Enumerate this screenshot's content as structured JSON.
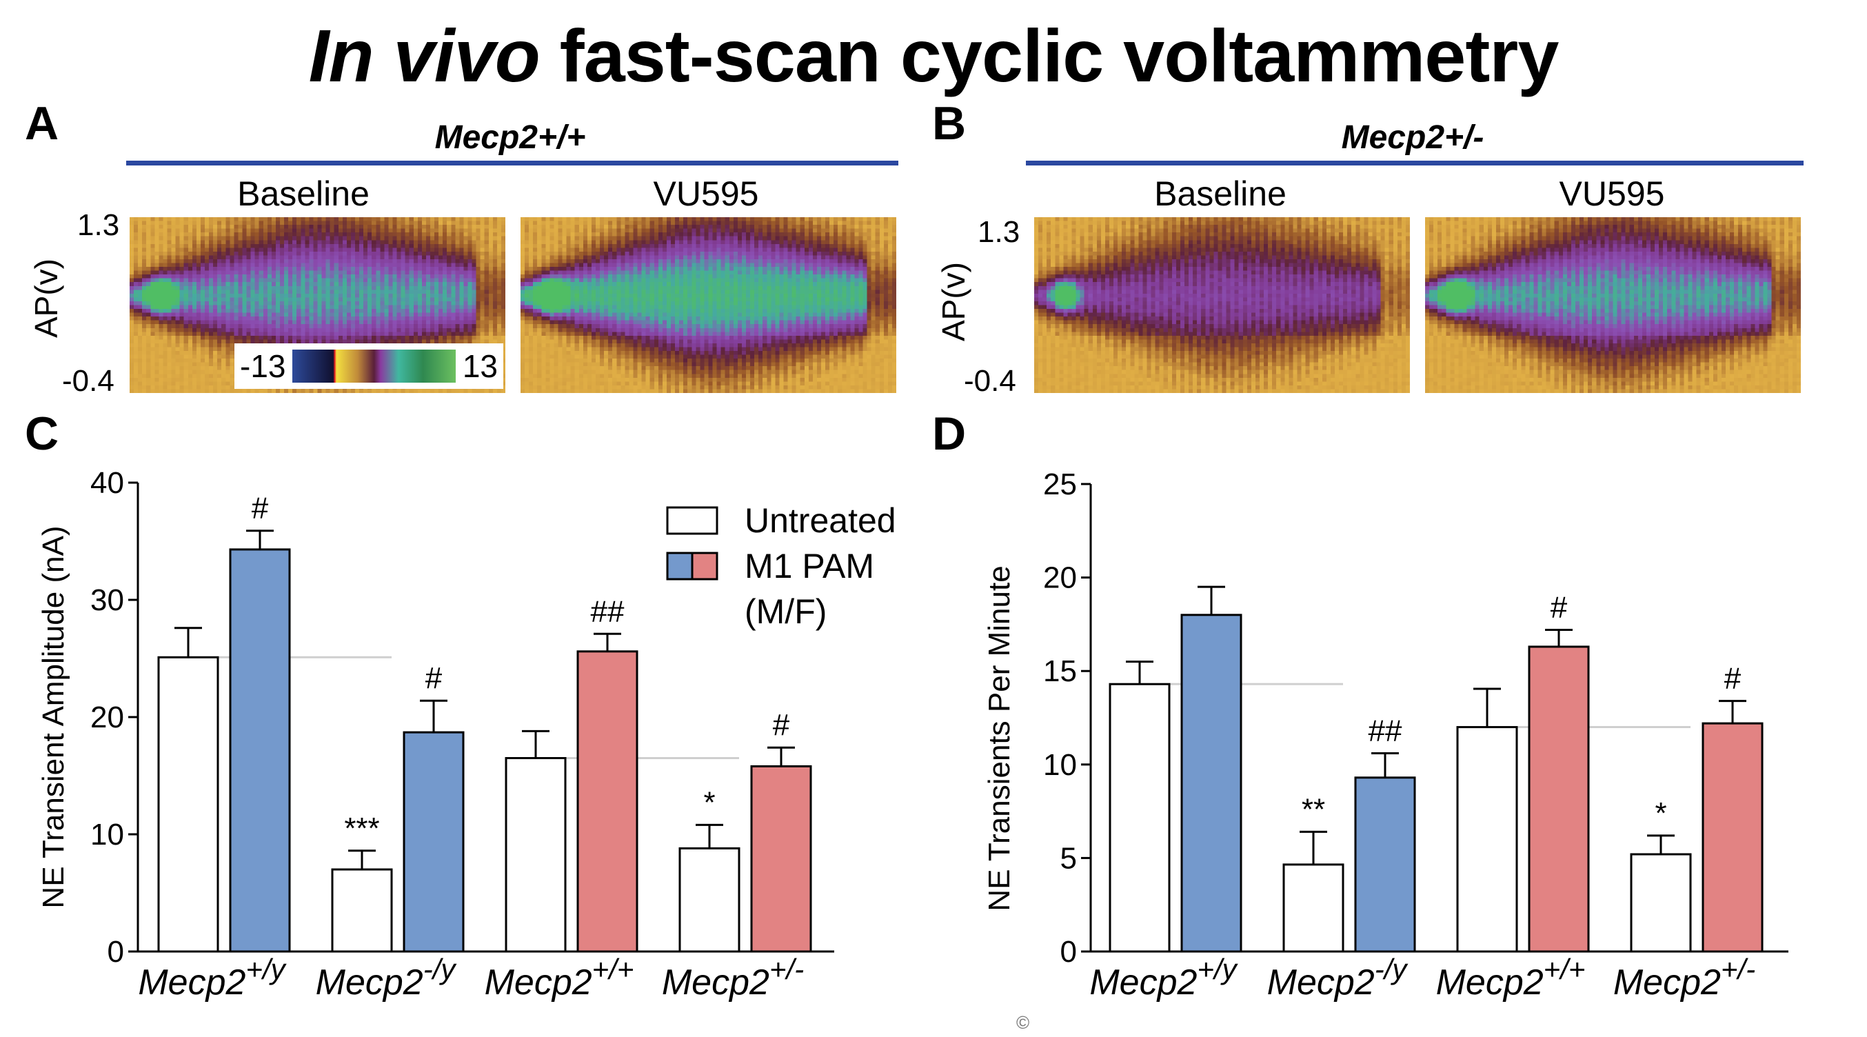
{
  "figure": {
    "title_italic": "In vivo",
    "title_rest": " fast-scan cyclic voltammetry",
    "panels": {
      "A": {
        "letter": "A",
        "genotype": "Mecp2+/+",
        "conditions": [
          "Baseline",
          "VU595"
        ],
        "y_top": "1.3",
        "y_bottom": "-0.4",
        "y_label": "AP(v)"
      },
      "B": {
        "letter": "B",
        "genotype": "Mecp2+/-",
        "conditions": [
          "Baseline",
          "VU595"
        ],
        "y_top": "1.3",
        "y_bottom": "-0.4",
        "y_label": "AP(v)"
      },
      "C": {
        "letter": "C"
      },
      "D": {
        "letter": "D"
      }
    },
    "colorbar": {
      "min": "-13",
      "max": "13"
    },
    "copyright_symbol": "©"
  },
  "chart_data": [
    {
      "type": "bar",
      "panel": "C",
      "title": "",
      "xlabel": "",
      "ylabel": "NE Transient Amplitude (nA)",
      "ylim": [
        0,
        40
      ],
      "yticks": [
        0,
        10,
        20,
        30,
        40
      ],
      "categories": [
        {
          "base": "Mecp2",
          "sup": "+/y"
        },
        {
          "base": "Mecp2",
          "sup": "-/y"
        },
        {
          "base": "Mecp2",
          "sup": "+/+"
        },
        {
          "base": "Mecp2",
          "sup": "+/-"
        }
      ],
      "series": [
        {
          "name": "Untreated",
          "values": [
            25.1,
            7.0,
            16.5,
            8.8
          ],
          "errors": [
            2.5,
            1.6,
            2.3,
            2.0
          ],
          "annotations": [
            "",
            "***",
            "",
            "*"
          ],
          "colors": [
            "#ffffff",
            "#ffffff",
            "#ffffff",
            "#ffffff"
          ]
        },
        {
          "name": "M1 PAM (M/F)",
          "values": [
            34.3,
            18.7,
            25.6,
            15.8
          ],
          "errors": [
            1.6,
            2.7,
            1.5,
            1.6
          ],
          "annotations": [
            "#",
            "#",
            "##",
            "#"
          ],
          "colors": [
            "#7499cc",
            "#7499cc",
            "#e28383",
            "#e28383"
          ]
        }
      ],
      "reference_lines": [
        {
          "value": 25.1,
          "from_group": 0,
          "to_group": 1
        },
        {
          "value": 16.5,
          "from_group": 2,
          "to_group": 3
        }
      ],
      "legend": {
        "placement": "top-right",
        "entries": [
          {
            "label": "Untreated",
            "swatch": [
              "#ffffff"
            ]
          },
          {
            "label": "M1 PAM",
            "label2": "(M/F)",
            "swatch": [
              "#7499cc",
              "#e28383"
            ]
          }
        ]
      },
      "grid": false
    },
    {
      "type": "bar",
      "panel": "D",
      "title": "",
      "xlabel": "",
      "ylabel": "NE Transients Per Minute",
      "ylim": [
        0,
        25
      ],
      "yticks": [
        0,
        5,
        10,
        15,
        20,
        25
      ],
      "categories": [
        {
          "base": "Mecp2",
          "sup": "+/y"
        },
        {
          "base": "Mecp2",
          "sup": "-/y"
        },
        {
          "base": "Mecp2",
          "sup": "+/+"
        },
        {
          "base": "Mecp2",
          "sup": "+/-"
        }
      ],
      "series": [
        {
          "name": "Untreated",
          "values": [
            14.3,
            4.65,
            12.0,
            5.2
          ],
          "errors": [
            1.2,
            1.75,
            2.05,
            1.0
          ],
          "annotations": [
            "",
            "**",
            "",
            "*"
          ],
          "colors": [
            "#ffffff",
            "#ffffff",
            "#ffffff",
            "#ffffff"
          ]
        },
        {
          "name": "M1 PAM (M/F)",
          "values": [
            18.0,
            9.3,
            16.3,
            12.2
          ],
          "errors": [
            1.5,
            1.3,
            0.9,
            1.2
          ],
          "annotations": [
            "",
            "##",
            "#",
            "#"
          ],
          "colors": [
            "#7499cc",
            "#7499cc",
            "#e28383",
            "#e28383"
          ]
        }
      ],
      "reference_lines": [
        {
          "value": 14.3,
          "from_group": 0,
          "to_group": 1
        },
        {
          "value": 12.0,
          "from_group": 2,
          "to_group": 3
        }
      ],
      "grid": false
    }
  ]
}
